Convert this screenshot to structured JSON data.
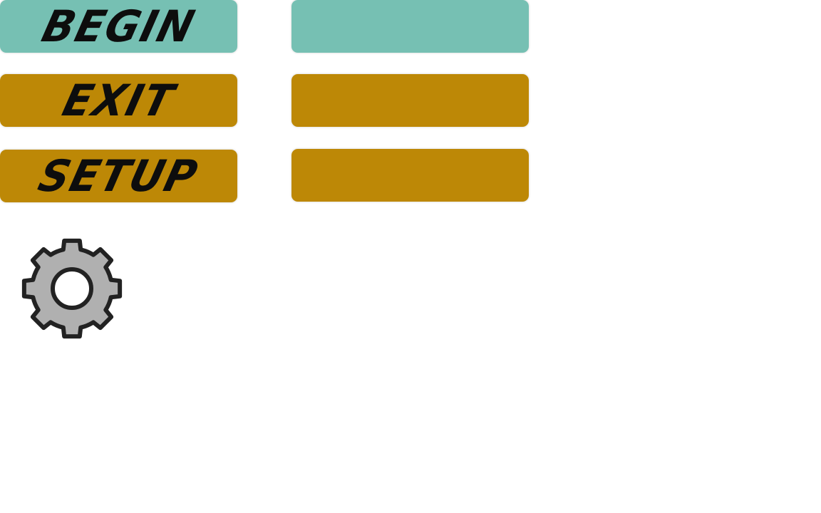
{
  "theme": {
    "teal": "#76c0b3",
    "gold": "#bd8806",
    "gear_fill": "#b0b0b0",
    "gear_stroke": "#222222"
  },
  "menu": {
    "begin_label": "BEGIN",
    "exit_label": "EXIT",
    "setup_label": "SETUP"
  },
  "icons": {
    "settings": "gear-icon"
  }
}
